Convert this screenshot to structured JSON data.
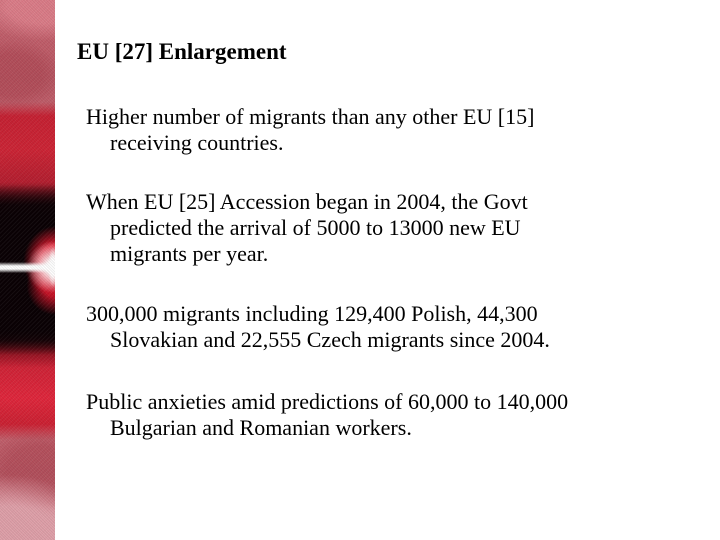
{
  "slide": {
    "title": "EU [27] Enlargement",
    "paragraphs": [
      {
        "lines": [
          "Higher number of migrants than any other EU [15]",
          "receiving countries."
        ]
      },
      {
        "lines": [
          "When EU [25] Accession began in 2004, the Govt",
          "predicted the arrival of 5000 to 13000 new EU",
          "migrants per year."
        ]
      },
      {
        "lines": [
          "300,000 migrants including 129,400 Polish, 44,300",
          "Slovakian and 22,555 Czech migrants since 2004."
        ]
      },
      {
        "lines": [
          "Public anxieties amid predictions of 60,000 to 140,000",
          "Bulgarian and Romanian workers."
        ]
      }
    ]
  },
  "theme": {
    "background": "#ffffff",
    "text_color": "#000000",
    "strip_crimson": "#c62133",
    "strip_rose": "#c05e6a",
    "strip_light_pink": "#d9929b",
    "strip_black": "#120103",
    "flare_white": "#ffffff"
  }
}
